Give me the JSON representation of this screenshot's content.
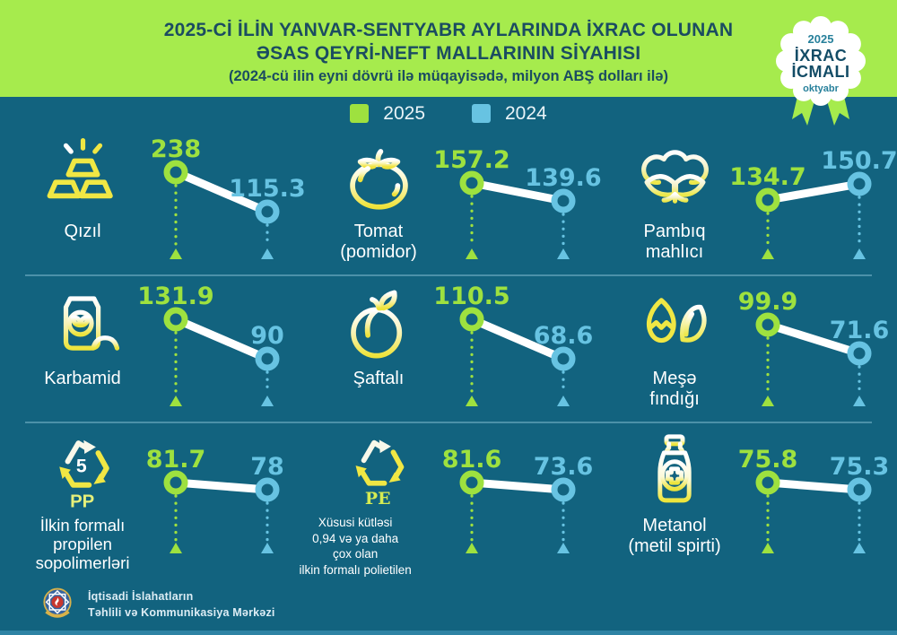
{
  "header": {
    "title_line1": "2025-Cİ İLİN YANVAR-SENTYABR AYLARINDA İXRAC OLUNAN",
    "title_line2": "ƏSAS QEYRİ-NEFT MALLARININ SİYAHISI",
    "subtitle": "(2024-cü ilin eyni dövrü ilə müqayisədə, milyon ABŞ dolları ilə)"
  },
  "badge": {
    "year": "2025",
    "line1": "İXRAC",
    "line2": "İCMALI",
    "month": "oktyabr"
  },
  "legend": {
    "year_2025": "2025",
    "year_2024": "2024"
  },
  "items": [
    {
      "label_lines": [
        "Qızıl"
      ],
      "icon": "gold-bars-icon",
      "value_2025": 238,
      "value_2024": 115.3,
      "display_2025": "238",
      "display_2024": "115.3"
    },
    {
      "label_lines": [
        "Tomat",
        "(pomidor)"
      ],
      "icon": "tomato-icon",
      "value_2025": 157.2,
      "value_2024": 139.6,
      "display_2025": "157.2",
      "display_2024": "139.6"
    },
    {
      "label_lines": [
        "Pambıq",
        "mahlıcı"
      ],
      "icon": "cotton-icon",
      "value_2025": 134.7,
      "value_2024": 150.7,
      "display_2025": "134.7",
      "display_2024": "150.7"
    },
    {
      "label_lines": [
        "Karbamid"
      ],
      "icon": "fertilizer-bag-icon",
      "value_2025": 131.9,
      "value_2024": 90,
      "display_2025": "131.9",
      "display_2024": "90"
    },
    {
      "label_lines": [
        "Şaftalı"
      ],
      "icon": "peach-icon",
      "value_2025": 110.5,
      "value_2024": 68.6,
      "display_2025": "110.5",
      "display_2024": "68.6"
    },
    {
      "label_lines": [
        "Meşə",
        "fındığı"
      ],
      "icon": "hazelnut-icon",
      "value_2025": 99.9,
      "value_2024": 71.6,
      "display_2025": "99.9",
      "display_2024": "71.6"
    },
    {
      "label_lines": [
        "İlkin formalı",
        "propilen",
        "sopolimerləri"
      ],
      "icon": "recycle-pp-icon",
      "icon_text": {
        "number": "5",
        "code": "PP"
      },
      "value_2025": 81.7,
      "value_2024": 78,
      "display_2025": "81.7",
      "display_2024": "78"
    },
    {
      "label_lines": [
        "Xüsusi kütləsi",
        "0,94 və ya daha",
        "çox olan",
        "ilkin formalı polietilen"
      ],
      "icon": "recycle-pe-icon",
      "icon_text": {
        "code": "PE"
      },
      "value_2025": 81.6,
      "value_2024": 73.6,
      "display_2025": "81.6",
      "display_2024": "73.6"
    },
    {
      "label_lines": [
        "Metanol",
        "(metil spirti)"
      ],
      "icon": "bottle-icon",
      "value_2025": 75.8,
      "value_2024": 75.3,
      "display_2025": "75.8",
      "display_2024": "75.3"
    }
  ],
  "footer": {
    "org_line1": "İqtisadi İslahatların",
    "org_line2": "Təhlili və Kommunikasiya Mərkəzi"
  },
  "colors": {
    "background": "#12637F",
    "header_bg": "#A6EB4D",
    "accent_2025": "#9EE13F",
    "accent_2024": "#67C3E2",
    "title_text": "#1B4C61",
    "connector_line": "#FFFFFF",
    "icon_yellow": "#F0E744",
    "separator": "#7FB9D1"
  },
  "chart_data": {
    "type": "line",
    "subtype": "slope-comparison",
    "title": "2025-Cİ İLİN YANVAR-SENTYABR AYLARINDA İXRAC OLUNAN ƏSAS QEYRİ-NEFT MALLARININ SİYAHISI",
    "subtitle": "(2024-cü ilin eyni dövrü ilə müqayisədə, milyon ABŞ dolları ilə)",
    "unit": "milyon ABŞ dolları",
    "legend_position": "top-center",
    "categories": [
      "Qızıl",
      "Tomat (pomidor)",
      "Pambıq mahlıcı",
      "Karbamid",
      "Şaftalı",
      "Meşə fındığı",
      "İlkin formalı propilen sopolimerləri",
      "Xüsusi kütləsi 0,94 və ya daha çox olan ilkin formalı polietilen",
      "Metanol (metil spirti)"
    ],
    "series": [
      {
        "name": "2025",
        "color": "#9EE13F",
        "values": [
          238,
          157.2,
          134.7,
          131.9,
          110.5,
          99.9,
          81.7,
          81.6,
          75.8
        ]
      },
      {
        "name": "2024",
        "color": "#67C3E2",
        "values": [
          115.3,
          139.6,
          150.7,
          90,
          68.6,
          71.6,
          78,
          73.6,
          75.3
        ]
      }
    ]
  }
}
